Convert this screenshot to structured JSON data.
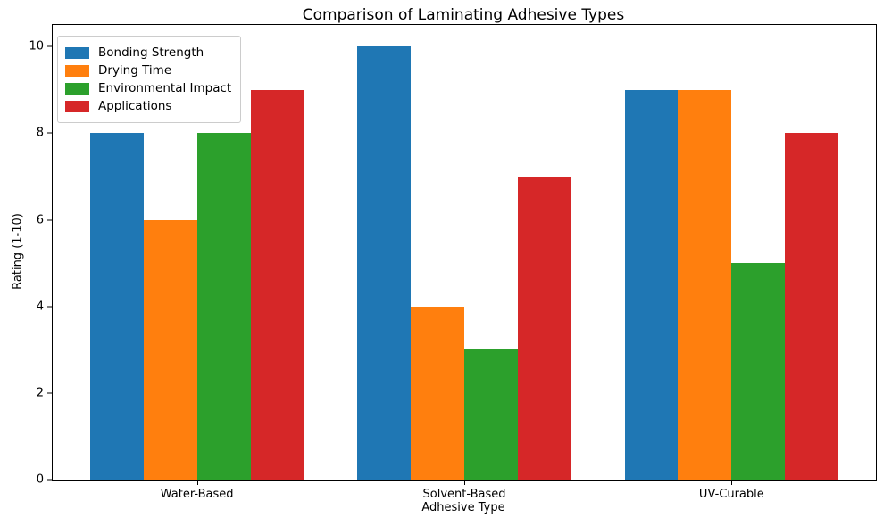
{
  "chart_data": {
    "type": "bar",
    "title": "Comparison of Laminating Adhesive Types",
    "xlabel": "Adhesive Type",
    "ylabel": "Rating (1-10)",
    "categories": [
      "Water-Based",
      "Solvent-Based",
      "UV-Curable"
    ],
    "series": [
      {
        "name": "Bonding Strength",
        "color": "#1f77b4",
        "values": [
          8,
          10,
          9
        ]
      },
      {
        "name": "Drying Time",
        "color": "#ff7f0e",
        "values": [
          6,
          4,
          9
        ]
      },
      {
        "name": "Environmental Impact",
        "color": "#2ca02c",
        "values": [
          8,
          3,
          5
        ]
      },
      {
        "name": "Applications",
        "color": "#d62728",
        "values": [
          9,
          7,
          8
        ]
      }
    ],
    "bar_width": 0.2,
    "ylim": [
      0,
      10.5
    ],
    "xlim": [
      -0.54,
      2.54
    ],
    "yticks": [
      0,
      2,
      4,
      6,
      8,
      10
    ],
    "legend_position": "upper left",
    "grid": false,
    "background_color": "#ffffff",
    "text_color": "#000000",
    "spine_color": "#000000"
  }
}
